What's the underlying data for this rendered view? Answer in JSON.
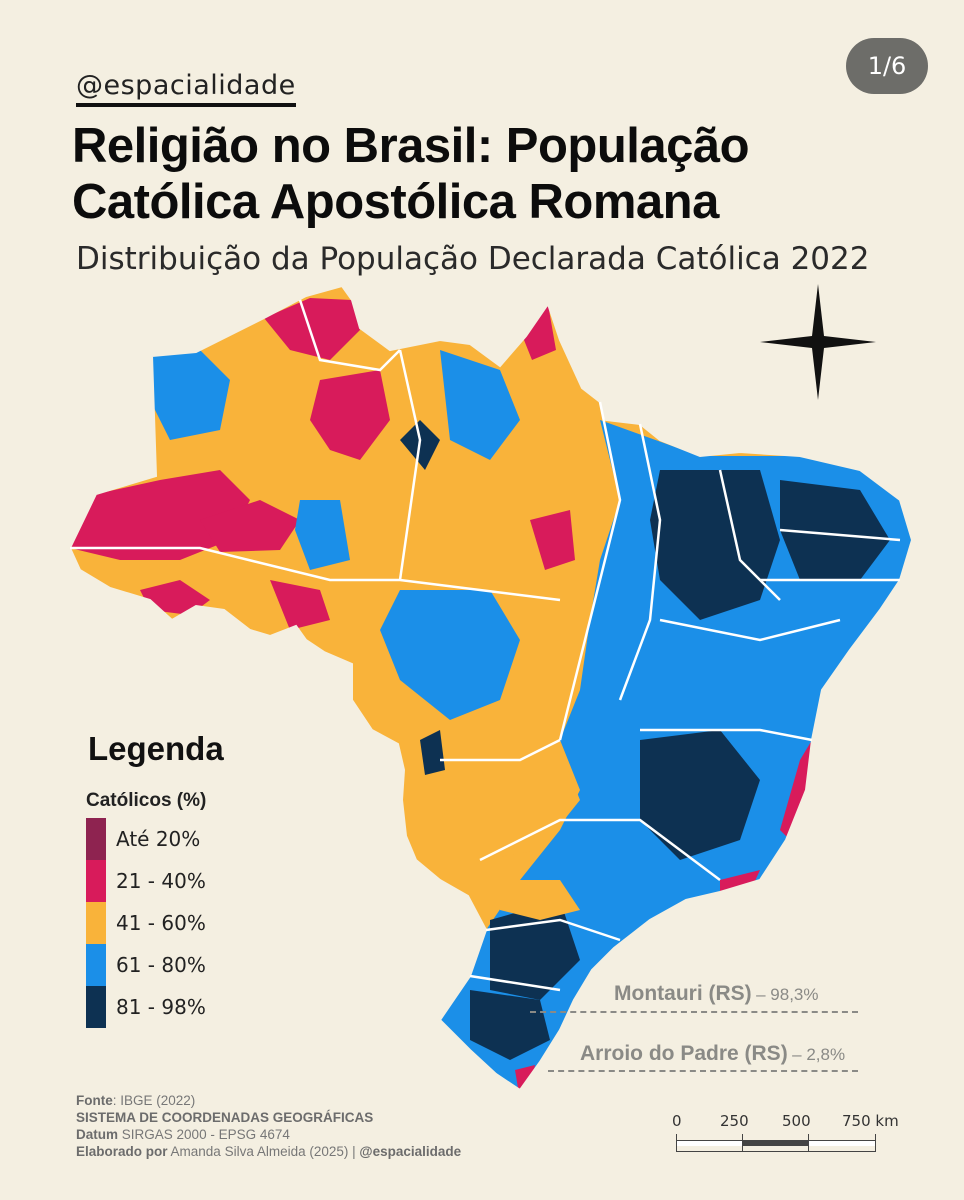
{
  "header": {
    "handle": "@espacialidade",
    "page_badge": "1/6",
    "title": "Religião no Brasil: População Católica Apostólica Romana",
    "subtitle": "Distribuição da População Declarada Católica 2022"
  },
  "legend": {
    "title": "Legenda",
    "subtitle": "Católicos (%)",
    "items": [
      {
        "label": "Até 20%",
        "color": "#8e2350"
      },
      {
        "label": "21 - 40%",
        "color": "#d81b5b"
      },
      {
        "label": "41 - 60%",
        "color": "#f9b33a"
      },
      {
        "label": "61 - 80%",
        "color": "#1b8fe8"
      },
      {
        "label": "81 - 98%",
        "color": "#0d3152"
      }
    ]
  },
  "callouts": [
    {
      "name": "Montauri (RS)",
      "value": "– 98,3%"
    },
    {
      "name": "Arroio do Padre (RS)",
      "value": "– 2,8%"
    }
  ],
  "credits": {
    "source_label": "Fonte",
    "source_value": ": IBGE (2022)",
    "system_label": "SISTEMA DE COORDENADAS GEOGRÁFICAS",
    "datum_label": "Datum",
    "datum_value": "SIRGAS 2000 - EPSG 4674",
    "author_label": "Elaborado por",
    "author_value": "Amanda Silva Almeida (2025) |",
    "author_handle": "@espacialidade"
  },
  "scale_bar": {
    "ticks": [
      "0",
      "250",
      "500",
      "750 km"
    ]
  },
  "colors": {
    "background": "#f4efe1",
    "border": "#ffffff",
    "compass": "#111111"
  }
}
